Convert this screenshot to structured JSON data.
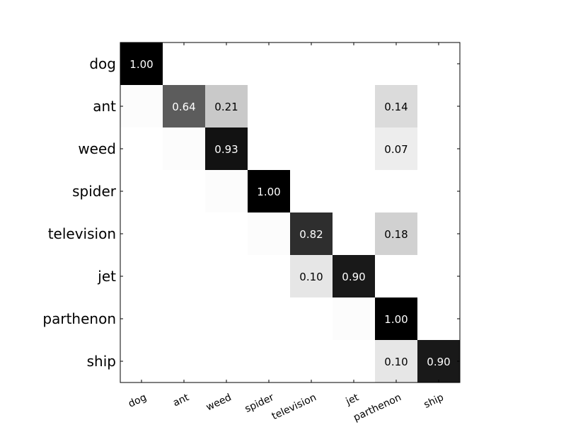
{
  "chart_data": {
    "type": "heatmap",
    "title": "",
    "xlabel": "",
    "ylabel": "",
    "row_labels": [
      "dog",
      "ant",
      "weed",
      "spider",
      "television",
      "jet",
      "parthenon",
      "ship"
    ],
    "col_labels": [
      "dog",
      "ant",
      "weed",
      "spider",
      "television",
      "jet",
      "parthenon",
      "ship"
    ],
    "values": [
      [
        1.0,
        0.0,
        0.0,
        0.0,
        0.0,
        0.0,
        0.0,
        0.0
      ],
      [
        0.01,
        0.64,
        0.21,
        0.0,
        0.0,
        0.0,
        0.14,
        0.0
      ],
      [
        0.0,
        0.01,
        0.93,
        0.0,
        0.0,
        0.0,
        0.07,
        0.0
      ],
      [
        0.0,
        0.0,
        0.01,
        1.0,
        0.0,
        0.0,
        0.0,
        0.0
      ],
      [
        0.0,
        0.0,
        0.0,
        0.01,
        0.82,
        0.0,
        0.18,
        0.0
      ],
      [
        0.0,
        0.0,
        0.0,
        0.0,
        0.1,
        0.9,
        0.0,
        0.0
      ],
      [
        0.0,
        0.0,
        0.0,
        0.0,
        0.0,
        0.01,
        1.0,
        0.0
      ],
      [
        0.0,
        0.0,
        0.0,
        0.0,
        0.0,
        0.0,
        0.1,
        0.9
      ]
    ],
    "annotation_threshold": 0.05,
    "colormap": "gray_r",
    "vmin": 0,
    "vmax": 1,
    "grid": false
  },
  "colors": {
    "background": "#ffffff",
    "axis": "#000000",
    "text_dark_cell": "#ffffff",
    "text_light_cell": "#000000"
  }
}
